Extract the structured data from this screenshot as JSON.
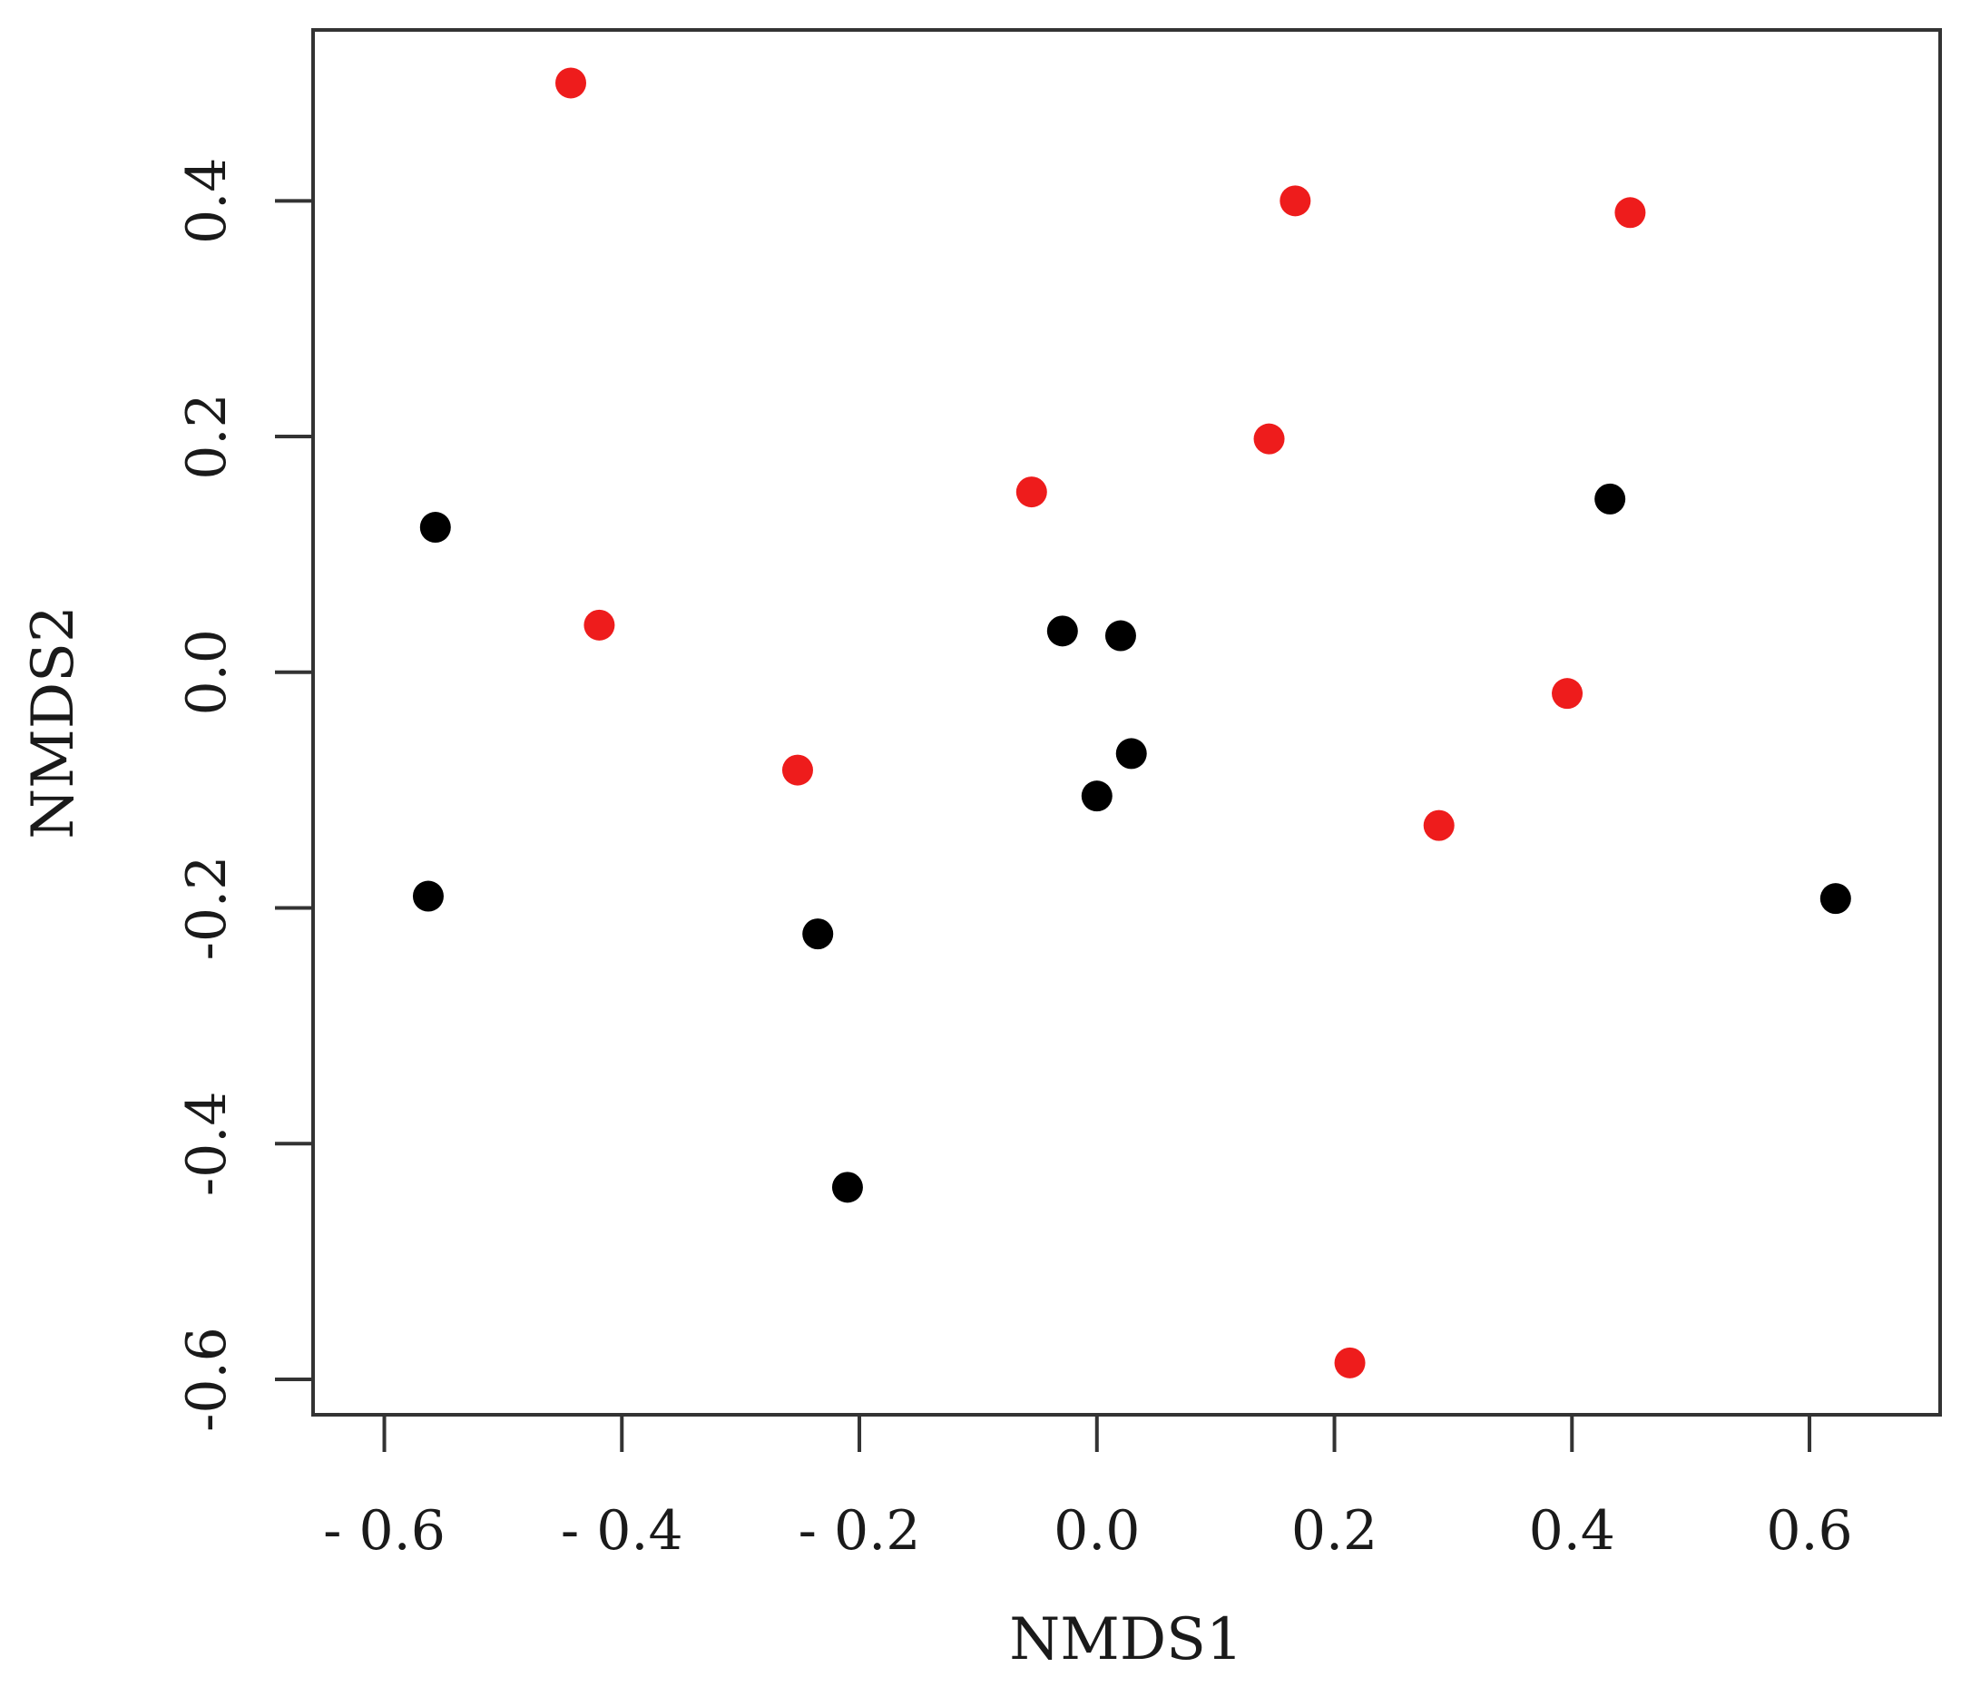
{
  "chart_data": {
    "type": "scatter",
    "xlabel": "NMDS1",
    "ylabel": "NMDS2",
    "xlim": [
      -0.66,
      0.71
    ],
    "ylim": [
      -0.63,
      0.545
    ],
    "xticks": [
      -0.6,
      -0.4,
      -0.2,
      0.0,
      0.2,
      0.4,
      0.6
    ],
    "xtick_labels": [
      "- 0.6",
      "- 0.4",
      "- 0.2",
      "0.0",
      "0.2",
      "0.4",
      "0.6"
    ],
    "yticks": [
      -0.6,
      -0.4,
      -0.2,
      0.0,
      0.2,
      0.4
    ],
    "ytick_labels": [
      "-0.6",
      "-0.4",
      "-0.2",
      "0.0",
      "0.2",
      "0.4"
    ],
    "grid": false,
    "series": [
      {
        "color": "#ee1c1c",
        "points": [
          {
            "x": -0.443,
            "y": 0.5
          },
          {
            "x": 0.167,
            "y": 0.4
          },
          {
            "x": 0.449,
            "y": 0.39
          },
          {
            "x": 0.145,
            "y": 0.198
          },
          {
            "x": -0.055,
            "y": 0.153
          },
          {
            "x": -0.419,
            "y": 0.04
          },
          {
            "x": 0.396,
            "y": -0.018
          },
          {
            "x": -0.252,
            "y": -0.083
          },
          {
            "x": 0.288,
            "y": -0.13
          },
          {
            "x": 0.213,
            "y": -0.586
          }
        ]
      },
      {
        "color": "#000000",
        "points": [
          {
            "x": -0.557,
            "y": 0.123
          },
          {
            "x": 0.432,
            "y": 0.147
          },
          {
            "x": -0.029,
            "y": 0.035
          },
          {
            "x": 0.02,
            "y": 0.031
          },
          {
            "x": 0.029,
            "y": -0.069
          },
          {
            "x": 0.0,
            "y": -0.105
          },
          {
            "x": -0.563,
            "y": -0.19
          },
          {
            "x": -0.235,
            "y": -0.222
          },
          {
            "x": 0.622,
            "y": -0.192
          },
          {
            "x": -0.21,
            "y": -0.437
          }
        ]
      }
    ]
  }
}
